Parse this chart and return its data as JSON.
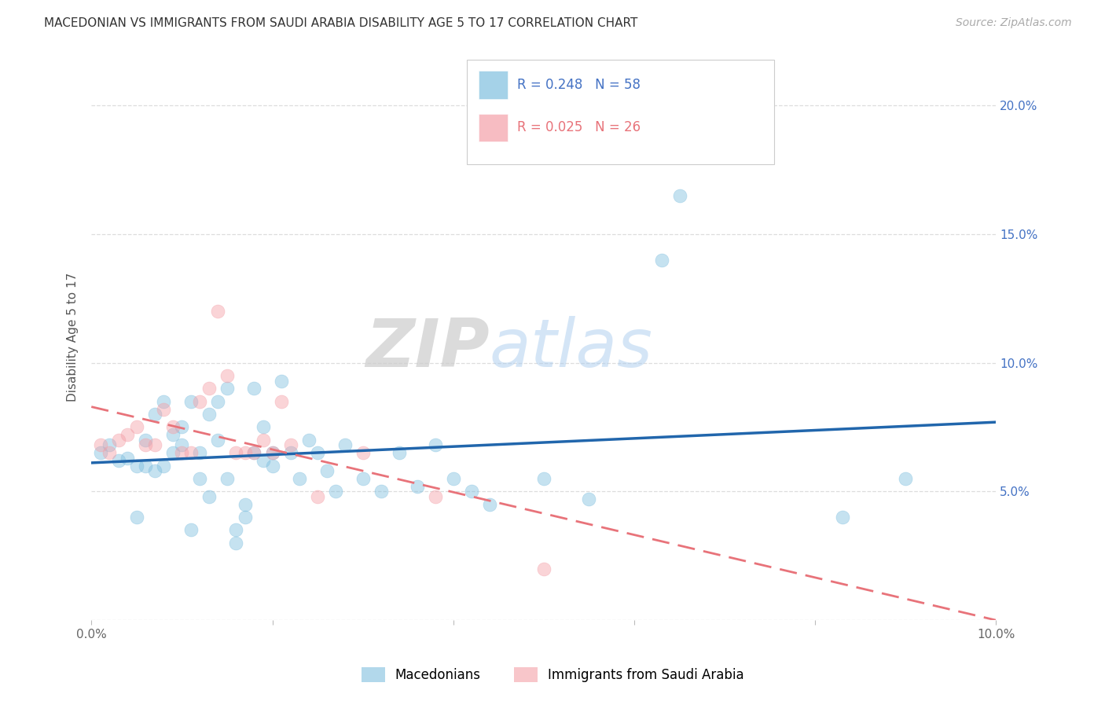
{
  "title": "MACEDONIAN VS IMMIGRANTS FROM SAUDI ARABIA DISABILITY AGE 5 TO 17 CORRELATION CHART",
  "source": "Source: ZipAtlas.com",
  "ylabel": "Disability Age 5 to 17",
  "xlim": [
    0.0,
    0.1
  ],
  "ylim": [
    0.0,
    0.22
  ],
  "xticks": [
    0.0,
    0.02,
    0.04,
    0.06,
    0.08,
    0.1
  ],
  "yticks": [
    0.0,
    0.05,
    0.1,
    0.15,
    0.2
  ],
  "xticklabels": [
    "0.0%",
    "",
    "",
    "",
    "",
    ""
  ],
  "xticklabels_shown": [
    "0.0%",
    "10.0%"
  ],
  "yticklabels_right": [
    "",
    "5.0%",
    "10.0%",
    "15.0%",
    "20.0%"
  ],
  "macedonian_R": 0.248,
  "macedonian_N": 58,
  "saudi_R": 0.025,
  "saudi_N": 26,
  "blue_color": "#7fbfdf",
  "pink_color": "#f4a0a8",
  "blue_line_color": "#2166ac",
  "pink_line_color": "#e8737a",
  "watermark_zip": "ZIP",
  "watermark_atlas": "atlas",
  "legend_labels": [
    "Macedonians",
    "Immigrants from Saudi Arabia"
  ],
  "mac_x": [
    0.001,
    0.002,
    0.003,
    0.004,
    0.005,
    0.006,
    0.007,
    0.008,
    0.009,
    0.01,
    0.011,
    0.012,
    0.013,
    0.014,
    0.015,
    0.016,
    0.017,
    0.018,
    0.019,
    0.02,
    0.005,
    0.006,
    0.007,
    0.008,
    0.009,
    0.01,
    0.011,
    0.012,
    0.013,
    0.014,
    0.015,
    0.016,
    0.017,
    0.018,
    0.019,
    0.02,
    0.021,
    0.022,
    0.023,
    0.024,
    0.025,
    0.026,
    0.027,
    0.028,
    0.03,
    0.032,
    0.034,
    0.036,
    0.038,
    0.04,
    0.042,
    0.044,
    0.05,
    0.055,
    0.063,
    0.065,
    0.083,
    0.09
  ],
  "mac_y": [
    0.065,
    0.068,
    0.062,
    0.063,
    0.06,
    0.07,
    0.058,
    0.06,
    0.072,
    0.075,
    0.035,
    0.055,
    0.08,
    0.085,
    0.09,
    0.03,
    0.045,
    0.065,
    0.075,
    0.065,
    0.04,
    0.06,
    0.08,
    0.085,
    0.065,
    0.068,
    0.085,
    0.065,
    0.048,
    0.07,
    0.055,
    0.035,
    0.04,
    0.09,
    0.062,
    0.06,
    0.093,
    0.065,
    0.055,
    0.07,
    0.065,
    0.058,
    0.05,
    0.068,
    0.055,
    0.05,
    0.065,
    0.052,
    0.068,
    0.055,
    0.05,
    0.045,
    0.055,
    0.047,
    0.14,
    0.165,
    0.04,
    0.055
  ],
  "saudi_x": [
    0.001,
    0.002,
    0.003,
    0.004,
    0.005,
    0.006,
    0.007,
    0.008,
    0.009,
    0.01,
    0.011,
    0.012,
    0.013,
    0.014,
    0.015,
    0.016,
    0.017,
    0.018,
    0.019,
    0.02,
    0.021,
    0.022,
    0.025,
    0.03,
    0.038,
    0.05
  ],
  "saudi_y": [
    0.068,
    0.065,
    0.07,
    0.072,
    0.075,
    0.068,
    0.068,
    0.082,
    0.075,
    0.065,
    0.065,
    0.085,
    0.09,
    0.12,
    0.095,
    0.065,
    0.065,
    0.065,
    0.07,
    0.065,
    0.085,
    0.068,
    0.048,
    0.065,
    0.048,
    0.02
  ]
}
